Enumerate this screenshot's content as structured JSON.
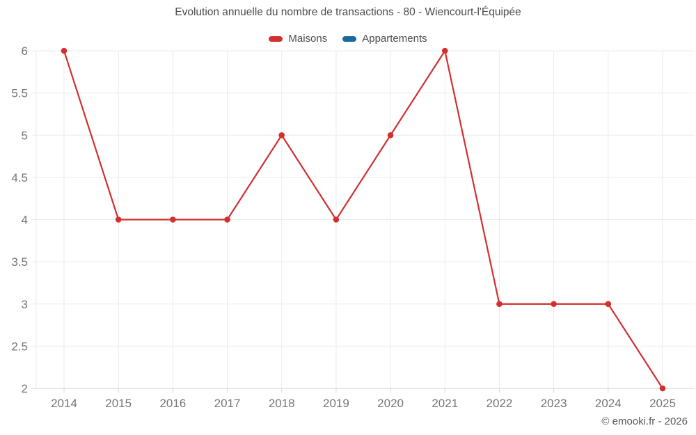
{
  "chart_data": {
    "type": "line",
    "title": "Evolution annuelle du nombre de transactions - 80 - Wiencourt-l'Équipée",
    "categories": [
      "2014",
      "2015",
      "2016",
      "2017",
      "2018",
      "2019",
      "2020",
      "2021",
      "2022",
      "2023",
      "2024",
      "2025"
    ],
    "series": [
      {
        "name": "Maisons",
        "color": "#d32f2f",
        "values": [
          6,
          4,
          4,
          4,
          5,
          4,
          5,
          6,
          3,
          3,
          3,
          2
        ]
      },
      {
        "name": "Appartements",
        "color": "#1b6a9e",
        "values": []
      }
    ],
    "ylim": [
      2,
      6
    ],
    "yticks": [
      2,
      2.5,
      3,
      3.5,
      4,
      4.5,
      5,
      5.5,
      6
    ],
    "grid": true,
    "legend_position": "top",
    "marker_radius": 4.3,
    "footer": "© emooki.fr - 2026",
    "colors": {
      "grid": "#ebebeb",
      "axis": "#d6d6d6",
      "tick_label": "#757575",
      "title_text": "#4c4c4c"
    }
  }
}
